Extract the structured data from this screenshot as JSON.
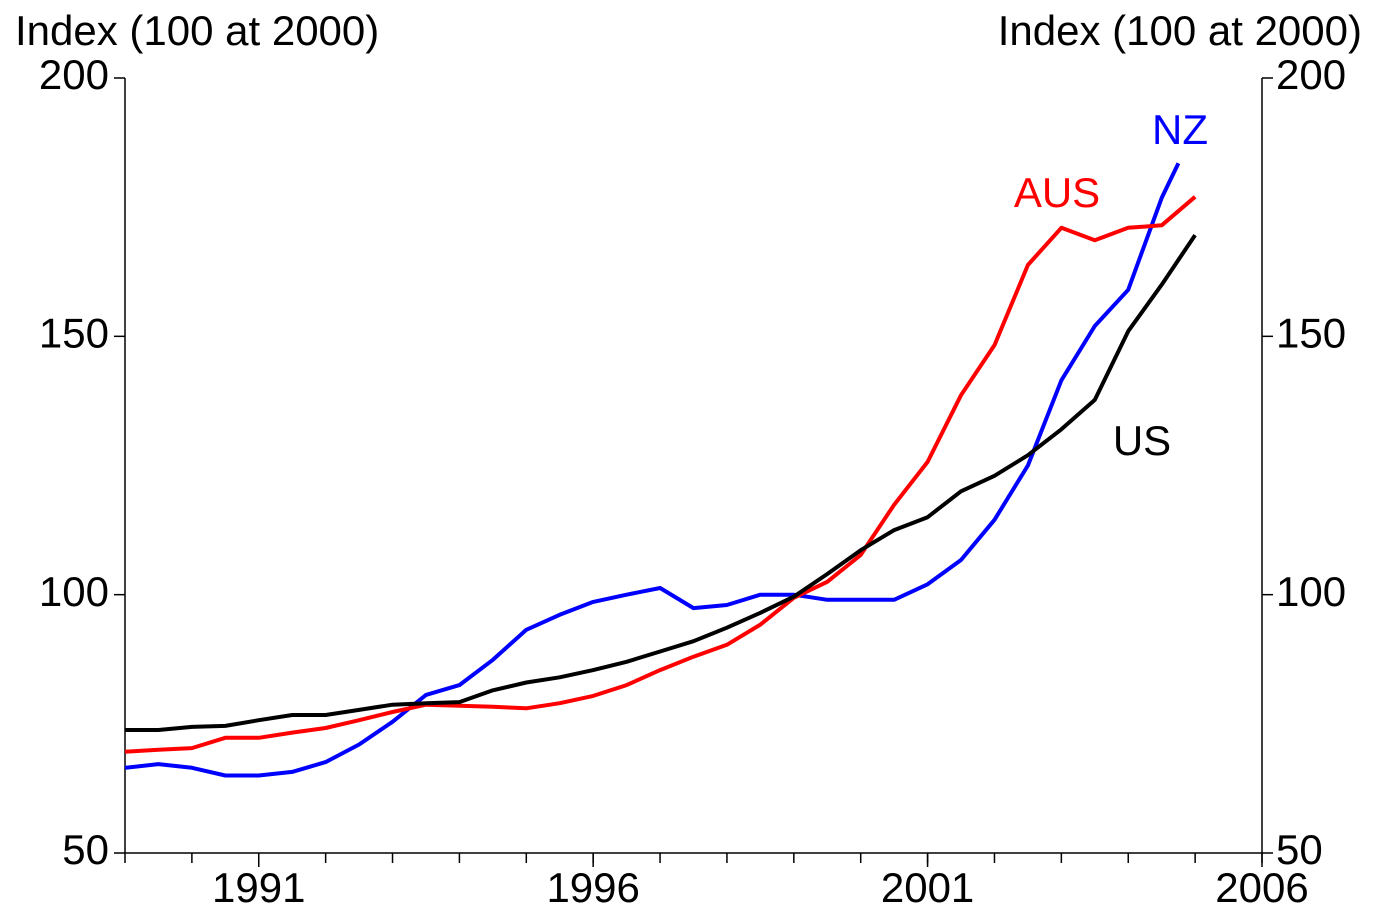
{
  "chart_data": {
    "type": "line",
    "y_label_left": "Index (100 at 2000)",
    "y_label_right": "Index (100 at 2000)",
    "xlim": [
      1989,
      2006
    ],
    "xticks": [
      1991,
      1996,
      2001,
      2006
    ],
    "xminorticks": [
      1989,
      1990,
      1991,
      1992,
      1993,
      1994,
      1995,
      1996,
      1997,
      1998,
      1999,
      2000,
      2001,
      2002,
      2003,
      2004,
      2005,
      2006
    ],
    "ylim": [
      50,
      200
    ],
    "yticks": [
      50,
      100,
      150,
      200
    ],
    "y2lim": [
      50,
      200
    ],
    "y2ticks": [
      50,
      100,
      150,
      200
    ],
    "series": [
      {
        "name": "NZ",
        "color": "#0000ff",
        "x": [
          1989,
          1989.5,
          1990,
          1990.5,
          1991,
          1991.5,
          1992,
          1992.5,
          1993,
          1993.5,
          1994,
          1994.5,
          1995,
          1995.5,
          1996,
          1996.5,
          1997,
          1997.5,
          1998,
          1998.5,
          1999,
          1999.5,
          2000,
          2000.5,
          2001,
          2001.5,
          2002,
          2002.5,
          2003,
          2003.5,
          2004,
          2004.5,
          2004.75
        ],
        "values": [
          66.5,
          67.2,
          66.5,
          65,
          65,
          65.7,
          67.6,
          71,
          75.4,
          80.6,
          82.5,
          87.4,
          93.2,
          96.1,
          98.6,
          100,
          101.3,
          97.4,
          98,
          100,
          100,
          99,
          99,
          99,
          102,
          106.7,
          114.5,
          125,
          141.5,
          152,
          159,
          176.8,
          183.5
        ]
      },
      {
        "name": "AUS",
        "color": "#ff0000",
        "x": [
          1989,
          1989.5,
          1990,
          1990.5,
          1991,
          1991.5,
          1992,
          1992.5,
          1993,
          1993.5,
          1994,
          1994.5,
          1995,
          1995.5,
          1996,
          1996.5,
          1997,
          1997.5,
          1998,
          1998.5,
          1999,
          1999.5,
          2000,
          2000.5,
          2001,
          2001.5,
          2002,
          2002.5,
          2003,
          2003.5,
          2004,
          2004.5,
          2005
        ],
        "values": [
          69.6,
          70,
          70.3,
          72.3,
          72.3,
          73.3,
          74.2,
          75.7,
          77.3,
          78.7,
          78.5,
          78.3,
          78,
          79,
          80.4,
          82.5,
          85.4,
          88,
          90.3,
          94.2,
          99.4,
          102.5,
          107.7,
          117.4,
          125.7,
          138.6,
          148.3,
          163.8,
          171,
          168.6,
          171,
          171.5,
          177
        ]
      },
      {
        "name": "US",
        "color": "#000000",
        "x": [
          1989,
          1989.5,
          1990,
          1990.5,
          1991,
          1991.5,
          1992,
          1992.5,
          1993,
          1993.5,
          1994,
          1994.5,
          1995,
          1995.5,
          1996,
          1996.5,
          1997,
          1997.5,
          1998,
          1998.5,
          1999,
          1999.5,
          2000,
          2000.5,
          2001,
          2001.5,
          2002,
          2002.5,
          2003,
          2003.5,
          2004,
          2004.5,
          2005
        ],
        "values": [
          73.8,
          73.8,
          74.4,
          74.6,
          75.7,
          76.7,
          76.7,
          77.7,
          78.7,
          79,
          79.2,
          81.5,
          83,
          84,
          85.4,
          87,
          89,
          91,
          93.6,
          96.5,
          99.6,
          104,
          108.6,
          112.5,
          115,
          120,
          123,
          127,
          132,
          137.7,
          151,
          160,
          169.6
        ]
      }
    ]
  }
}
